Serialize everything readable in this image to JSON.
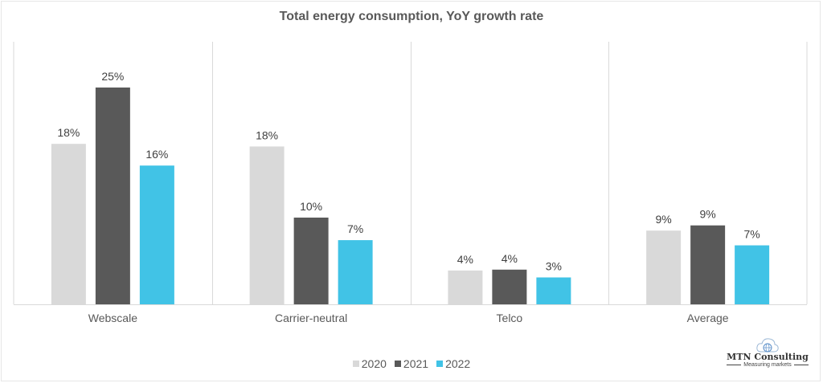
{
  "chart_data": {
    "type": "bar",
    "title": "Total energy consumption, YoY growth rate",
    "xlabel": "",
    "ylabel": "",
    "categories": [
      "Webscale",
      "Carrier-neutral",
      "Telco",
      "Average"
    ],
    "series": [
      {
        "name": "2020",
        "color": "#d9d9d9",
        "values": [
          18.5,
          18.2,
          3.9,
          8.5
        ],
        "labels": [
          "18%",
          "18%",
          "4%",
          "9%"
        ]
      },
      {
        "name": "2021",
        "color": "#595959",
        "values": [
          25.0,
          10.0,
          4.0,
          9.1
        ],
        "labels": [
          "25%",
          "10%",
          "4%",
          "9%"
        ]
      },
      {
        "name": "2022",
        "color": "#41c3e6",
        "values": [
          16.0,
          7.4,
          3.1,
          6.8
        ],
        "labels": [
          "16%",
          "7%",
          "3%",
          "7%"
        ]
      }
    ],
    "ylim": [
      0,
      30
    ],
    "grid": false,
    "category_separators": true,
    "legend": "bottom-center"
  },
  "logo": {
    "name": "MTN Consulting",
    "tagline": "Measuring markets",
    "icon": "cloud-globe-icon"
  }
}
